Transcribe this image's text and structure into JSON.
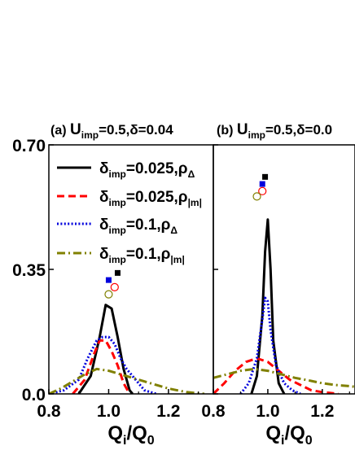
{
  "chart_data": [
    {
      "type": "line",
      "panel_label": "(a)",
      "title_prefix": "U",
      "title_sub": "imp",
      "title_suffix": "=0.5,δ=0.04",
      "xlabel": {
        "main": "Q",
        "sub": "i",
        "tail": "/Q",
        "sub2": "0"
      },
      "xlim": [
        0.8,
        1.35
      ],
      "ylim": [
        0,
        0.7
      ],
      "xticks": [
        0.8,
        1.0,
        1.2
      ],
      "xtick_labels": [
        "0.8",
        "1.0",
        "1.2"
      ],
      "yticks": [
        0.0,
        0.35,
        0.7
      ],
      "ytick_labels": [
        "0.0",
        "0.35",
        "0.70"
      ],
      "legend_position": "top-left",
      "series": [
        {
          "name_main": "δ",
          "name_sub": "imp",
          "name_rest": "=0.025,ρ",
          "name_rho_sub": "Δ",
          "color": "#000000",
          "dash": "solid",
          "x": [
            0.9,
            0.94,
            0.97,
            0.99,
            1.01,
            1.03,
            1.05,
            1.07,
            1.08
          ],
          "y": [
            0.0,
            0.05,
            0.16,
            0.25,
            0.24,
            0.16,
            0.07,
            0.01,
            0.0
          ]
        },
        {
          "name_main": "δ",
          "name_sub": "imp",
          "name_rest": "=0.025,ρ",
          "name_rho_sub": "|m|",
          "color": "#ff0000",
          "dash": "dashed",
          "x": [
            0.88,
            0.92,
            0.95,
            0.97,
            0.99,
            1.01,
            1.03,
            1.05,
            1.07
          ],
          "y": [
            0.0,
            0.04,
            0.11,
            0.15,
            0.15,
            0.12,
            0.08,
            0.03,
            0.0
          ]
        },
        {
          "name_main": "δ",
          "name_sub": "imp",
          "name_rest": "=0.1,ρ",
          "name_rho_sub": "Δ",
          "color": "#0000dd",
          "dash": "dotted",
          "x": [
            0.8,
            0.85,
            0.9,
            0.93,
            0.96,
            0.98,
            1.0,
            1.02,
            1.04,
            1.06,
            1.09,
            1.12,
            1.16
          ],
          "y": [
            0.0,
            0.01,
            0.04,
            0.1,
            0.15,
            0.16,
            0.16,
            0.14,
            0.1,
            0.07,
            0.04,
            0.01,
            0.0
          ]
        },
        {
          "name_main": "δ",
          "name_sub": "imp",
          "name_rest": "=0.1,ρ",
          "name_rho_sub": "|m|",
          "color": "#808000",
          "dash": "dashdot",
          "x": [
            0.8,
            0.84,
            0.88,
            0.92,
            0.96,
            1.0,
            1.04,
            1.08,
            1.12,
            1.16,
            1.2,
            1.26,
            1.32
          ],
          "y": [
            0.0,
            0.015,
            0.035,
            0.055,
            0.07,
            0.065,
            0.055,
            0.045,
            0.035,
            0.025,
            0.015,
            0.005,
            0.0
          ]
        }
      ],
      "markers": [
        {
          "shape": "filled-square",
          "color": "#000000",
          "x": 1.03,
          "y": 0.34
        },
        {
          "shape": "filled-square",
          "color": "#0000dd",
          "x": 1.0,
          "y": 0.32
        },
        {
          "shape": "open-circle",
          "color": "#ff0000",
          "x": 1.02,
          "y": 0.3
        },
        {
          "shape": "open-circle",
          "color": "#808000",
          "x": 1.0,
          "y": 0.28
        }
      ]
    },
    {
      "type": "line",
      "panel_label": "(b)",
      "title_prefix": "U",
      "title_sub": "imp",
      "title_suffix": "=0.5,δ=0.0",
      "xlabel": {
        "main": "Q",
        "sub": "i",
        "tail": "/Q",
        "sub2": "0"
      },
      "xlim": [
        0.8,
        1.32
      ],
      "ylim": [
        0,
        0.7
      ],
      "xticks": [
        0.8,
        1.0,
        1.2
      ],
      "xtick_labels": [
        "0.8",
        "1.0",
        "1.2"
      ],
      "yticks": [
        0.0,
        0.35,
        0.7
      ],
      "ytick_labels": [],
      "series": [
        {
          "color": "#000000",
          "dash": "solid",
          "x": [
            0.94,
            0.96,
            0.98,
            0.99,
            1.0,
            1.01,
            1.02,
            1.04,
            1.06
          ],
          "y": [
            0.0,
            0.05,
            0.22,
            0.4,
            0.49,
            0.35,
            0.15,
            0.03,
            0.0
          ]
        },
        {
          "color": "#ff0000",
          "dash": "dashed",
          "x": [
            0.8,
            0.84,
            0.88,
            0.92,
            0.96,
            1.0,
            1.04,
            1.08,
            1.12,
            1.16,
            1.2,
            1.26
          ],
          "y": [
            0.0,
            0.03,
            0.065,
            0.09,
            0.1,
            0.09,
            0.065,
            0.04,
            0.025,
            0.01,
            0.005,
            0.0
          ]
        },
        {
          "color": "#0000dd",
          "dash": "dotted",
          "x": [
            0.9,
            0.93,
            0.96,
            0.98,
            0.99,
            1.0,
            1.01,
            1.03,
            1.06,
            1.09,
            1.12
          ],
          "y": [
            0.0,
            0.03,
            0.1,
            0.21,
            0.27,
            0.26,
            0.18,
            0.08,
            0.03,
            0.01,
            0.0
          ]
        },
        {
          "color": "#808000",
          "dash": "dashdot",
          "x": [
            0.8,
            0.85,
            0.9,
            0.95,
            1.0,
            1.05,
            1.1,
            1.15,
            1.2,
            1.25,
            1.3,
            1.32
          ],
          "y": [
            0.045,
            0.055,
            0.065,
            0.07,
            0.065,
            0.055,
            0.045,
            0.038,
            0.03,
            0.025,
            0.022,
            0.02
          ]
        }
      ],
      "markers": [
        {
          "shape": "filled-square",
          "color": "#000000",
          "x": 0.99,
          "y": 0.61
        },
        {
          "shape": "filled-square",
          "color": "#0000dd",
          "x": 0.98,
          "y": 0.59
        },
        {
          "shape": "open-circle",
          "color": "#ff0000",
          "x": 0.98,
          "y": 0.57
        },
        {
          "shape": "open-circle",
          "color": "#808000",
          "x": 0.96,
          "y": 0.555
        }
      ]
    }
  ]
}
